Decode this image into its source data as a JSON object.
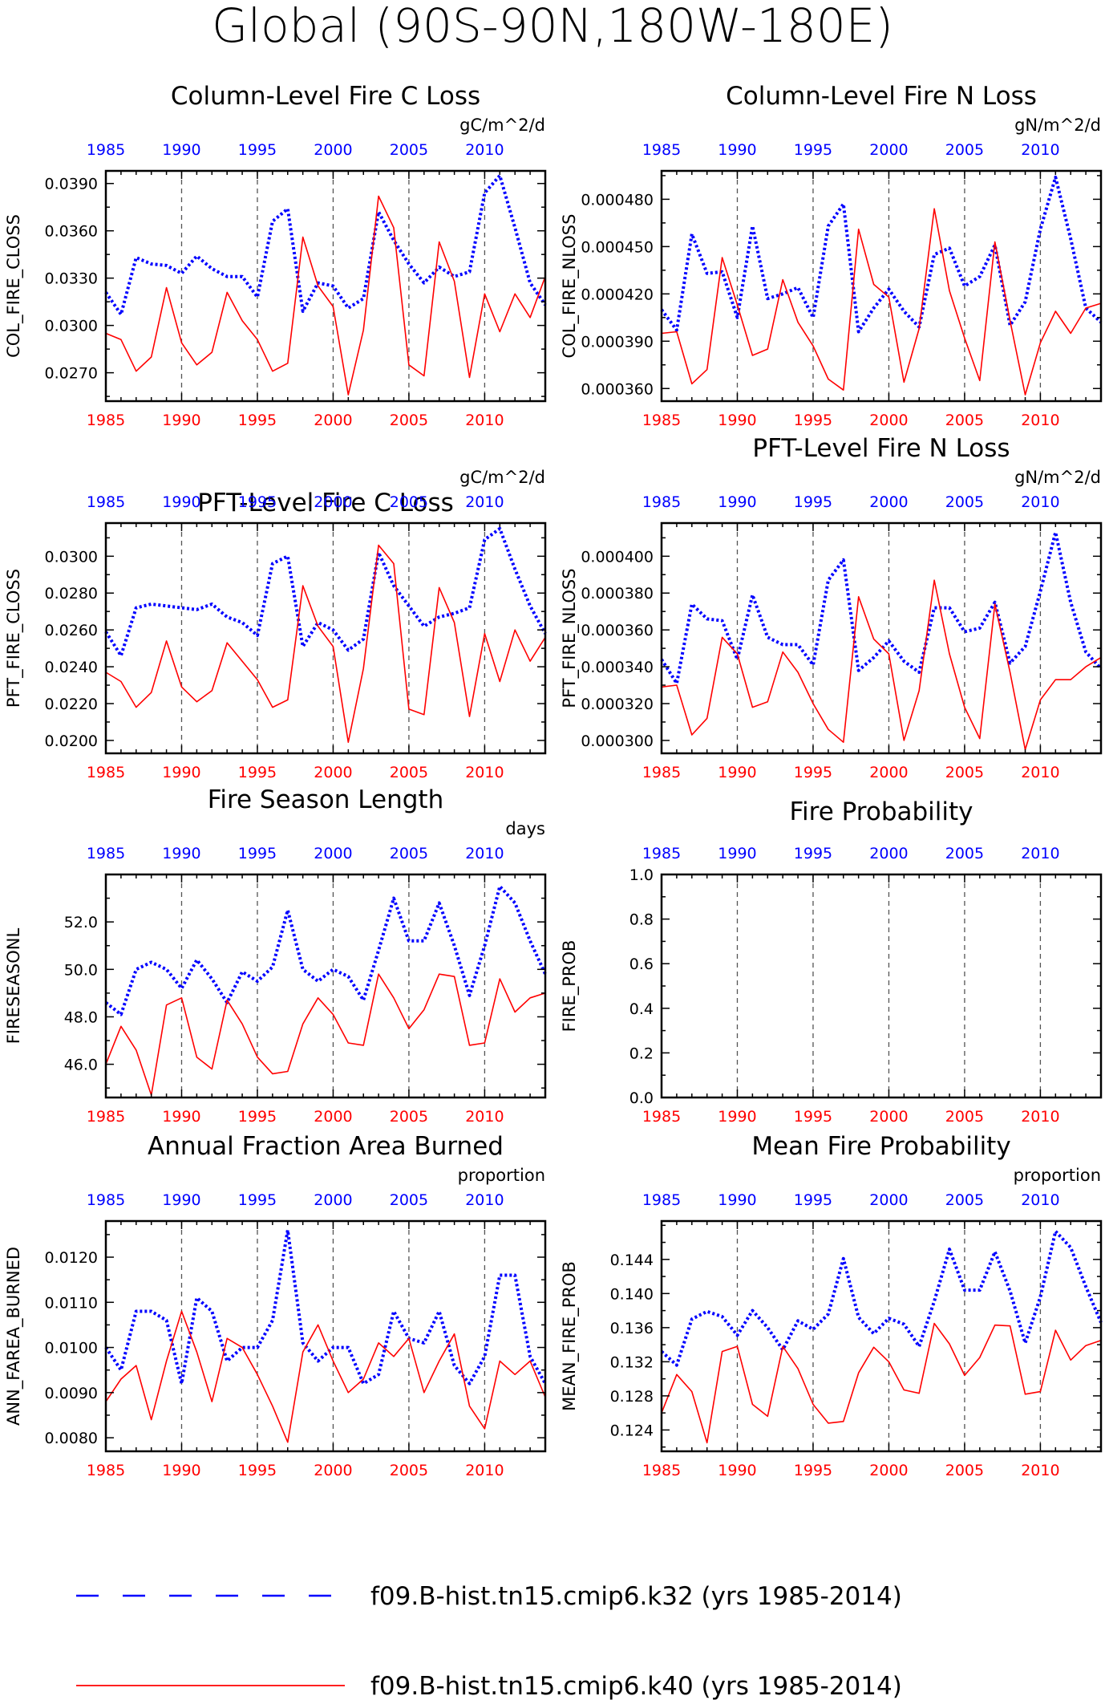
{
  "figure": {
    "title": "Global (90S-90N,180W-180E)",
    "colors": {
      "top_axis": "#0000ff",
      "bottom_axis": "#ff0000",
      "series_k32": "#0000ff",
      "series_k40": "#ff0000",
      "gridline": "#555555"
    }
  },
  "legend": [
    {
      "label": "f09.B-hist.tn15.cmip6.k32 (yrs 1985-2014)",
      "style": "dashed",
      "color": "#0000ff"
    },
    {
      "label": "f09.B-hist.tn15.cmip6.k40 (yrs 1985-2014)",
      "style": "solid",
      "color": "#ff0000"
    }
  ],
  "chart_data": [
    {
      "type": "line",
      "title": "Column-Level Fire C Loss",
      "ylabel": "COL_FIRE_CLOSS",
      "units": "gC/m^2/d",
      "xlim": [
        1985,
        2014
      ],
      "xticks": [
        "1985",
        "1990",
        "1995",
        "2000",
        "2005",
        "2010"
      ],
      "ylim": [
        0.0252,
        0.0398
      ],
      "yticks": [
        "0.0270",
        "0.0300",
        "0.0330",
        "0.0360",
        "0.0390"
      ],
      "x": [
        1985,
        1986,
        1987,
        1988,
        1989,
        1990,
        1991,
        1992,
        1993,
        1994,
        1995,
        1996,
        1997,
        1998,
        1999,
        2000,
        2001,
        2002,
        2003,
        2004,
        2005,
        2006,
        2007,
        2008,
        2009,
        2010,
        2011,
        2012,
        2013,
        2014
      ],
      "series": [
        {
          "name": "f09.B-hist.tn15.cmip6.k32 (yrs 1985-2014)",
          "values": [
            0.0321,
            0.0307,
            0.0343,
            0.0339,
            0.0338,
            0.0333,
            0.0344,
            0.0336,
            0.0331,
            0.0331,
            0.0318,
            0.0366,
            0.0374,
            0.0309,
            0.0327,
            0.0325,
            0.0311,
            0.0317,
            0.0372,
            0.0354,
            0.0339,
            0.0327,
            0.0337,
            0.0331,
            0.0334,
            0.0384,
            0.0395,
            0.0362,
            0.0327,
            0.0313
          ]
        },
        {
          "name": "f09.B-hist.tn15.cmip6.k40 (yrs 1985-2014)",
          "values": [
            0.0295,
            0.0291,
            0.0271,
            0.028,
            0.0324,
            0.0289,
            0.0275,
            0.0283,
            0.0321,
            0.0303,
            0.0291,
            0.0271,
            0.0276,
            0.0356,
            0.0325,
            0.0312,
            0.0256,
            0.0297,
            0.0382,
            0.0362,
            0.0275,
            0.0268,
            0.0353,
            0.0328,
            0.0267,
            0.032,
            0.0296,
            0.032,
            0.0305,
            0.0331
          ]
        }
      ]
    },
    {
      "type": "line",
      "title": "Column-Level Fire N Loss",
      "ylabel": "COL_FIRE_NLOSS",
      "units": "gN/m^2/d",
      "xlim": [
        1985,
        2014
      ],
      "xticks": [
        "1985",
        "1990",
        "1995",
        "2000",
        "2005",
        "2010"
      ],
      "ylim": [
        0.000352,
        0.000498
      ],
      "yticks": [
        "0.000360",
        "0.000390",
        "0.000420",
        "0.000450",
        "0.000480"
      ],
      "x": [
        1985,
        1986,
        1987,
        1988,
        1989,
        1990,
        1991,
        1992,
        1993,
        1994,
        1995,
        1996,
        1997,
        1998,
        1999,
        2000,
        2001,
        2002,
        2003,
        2004,
        2005,
        2006,
        2007,
        2008,
        2009,
        2010,
        2011,
        2012,
        2013,
        2014
      ],
      "series": [
        {
          "name": "f09.B-hist.tn15.cmip6.k32 (yrs 1985-2014)",
          "values": [
            0.00041,
            0.000397,
            0.000458,
            0.000433,
            0.000434,
            0.000405,
            0.000463,
            0.000417,
            0.00042,
            0.000424,
            0.000405,
            0.000463,
            0.000477,
            0.000396,
            0.000411,
            0.000423,
            0.000409,
            0.000399,
            0.000445,
            0.000449,
            0.000425,
            0.000431,
            0.000451,
            0.0004,
            0.000415,
            0.000461,
            0.000494,
            0.000455,
            0.000411,
            0.000402
          ]
        },
        {
          "name": "f09.B-hist.tn15.cmip6.k40 (yrs 1985-2014)",
          "values": [
            0.000395,
            0.000396,
            0.000363,
            0.000372,
            0.000443,
            0.000413,
            0.000381,
            0.000385,
            0.000429,
            0.000402,
            0.000387,
            0.000366,
            0.000359,
            0.000461,
            0.000426,
            0.000418,
            0.000364,
            0.000398,
            0.000474,
            0.000422,
            0.000392,
            0.000365,
            0.000453,
            0.000403,
            0.000356,
            0.000389,
            0.000409,
            0.000395,
            0.000411,
            0.000414
          ]
        }
      ]
    },
    {
      "type": "line",
      "title": "PFT-Level Fire C Loss",
      "ylabel": "PFT_FIRE_CLOSS",
      "units": "gC/m^2/d",
      "xlim": [
        1985,
        2014
      ],
      "xticks": [
        "1985",
        "1990",
        "1995",
        "2000",
        "2005",
        "2010"
      ],
      "ylim": [
        0.0193,
        0.0318
      ],
      "yticks": [
        "0.0200",
        "0.0220",
        "0.0240",
        "0.0260",
        "0.0280",
        "0.0300"
      ],
      "x": [
        1985,
        1986,
        1987,
        1988,
        1989,
        1990,
        1991,
        1992,
        1993,
        1994,
        1995,
        1996,
        1997,
        1998,
        1999,
        2000,
        2001,
        2002,
        2003,
        2004,
        2005,
        2006,
        2007,
        2008,
        2009,
        2010,
        2011,
        2012,
        2013,
        2014
      ],
      "series": [
        {
          "name": "f09.B-hist.tn15.cmip6.k32 (yrs 1985-2014)",
          "values": [
            0.0259,
            0.0246,
            0.0272,
            0.0274,
            0.0273,
            0.0272,
            0.0271,
            0.0274,
            0.0267,
            0.0264,
            0.0257,
            0.0296,
            0.03,
            0.0251,
            0.0264,
            0.026,
            0.0249,
            0.0255,
            0.0302,
            0.0284,
            0.0273,
            0.0262,
            0.0267,
            0.0269,
            0.0272,
            0.0309,
            0.0315,
            0.0293,
            0.0273,
            0.0258
          ]
        },
        {
          "name": "f09.B-hist.tn15.cmip6.k40 (yrs 1985-2014)",
          "values": [
            0.0237,
            0.0232,
            0.0218,
            0.0226,
            0.0254,
            0.0229,
            0.0221,
            0.0227,
            0.0253,
            0.0243,
            0.0233,
            0.0218,
            0.0222,
            0.0284,
            0.0262,
            0.0251,
            0.0199,
            0.0239,
            0.0306,
            0.0296,
            0.0217,
            0.0214,
            0.0283,
            0.0264,
            0.0213,
            0.0258,
            0.0232,
            0.026,
            0.0243,
            0.0256
          ]
        }
      ]
    },
    {
      "type": "line",
      "title": "PFT-Level Fire N Loss",
      "ylabel": "PFT_FIRE_NLOSS",
      "units": "gN/m^2/d",
      "xlim": [
        1985,
        2014
      ],
      "xticks": [
        "1985",
        "1990",
        "1995",
        "2000",
        "2005",
        "2010"
      ],
      "ylim": [
        0.000293,
        0.000418
      ],
      "yticks": [
        "0.000300",
        "0.000320",
        "0.000340",
        "0.000360",
        "0.000380",
        "0.000400"
      ],
      "x": [
        1985,
        1986,
        1987,
        1988,
        1989,
        1990,
        1991,
        1992,
        1993,
        1994,
        1995,
        1996,
        1997,
        1998,
        1999,
        2000,
        2001,
        2002,
        2003,
        2004,
        2005,
        2006,
        2007,
        2008,
        2009,
        2010,
        2011,
        2012,
        2013,
        2014
      ],
      "series": [
        {
          "name": "f09.B-hist.tn15.cmip6.k32 (yrs 1985-2014)",
          "values": [
            0.000344,
            0.000331,
            0.000374,
            0.000366,
            0.000365,
            0.000344,
            0.000379,
            0.000356,
            0.000352,
            0.000352,
            0.000341,
            0.000387,
            0.000398,
            0.000338,
            0.000345,
            0.000354,
            0.000343,
            0.000337,
            0.000372,
            0.000372,
            0.000359,
            0.000361,
            0.000375,
            0.000342,
            0.000351,
            0.000381,
            0.000413,
            0.000375,
            0.000348,
            0.000339
          ]
        },
        {
          "name": "f09.B-hist.tn15.cmip6.k40 (yrs 1985-2014)",
          "values": [
            0.000329,
            0.00033,
            0.000303,
            0.000312,
            0.000356,
            0.000347,
            0.000318,
            0.000321,
            0.000348,
            0.000337,
            0.00032,
            0.000306,
            0.000299,
            0.000378,
            0.000355,
            0.000347,
            0.0003,
            0.000327,
            0.000387,
            0.000347,
            0.000318,
            0.000301,
            0.000374,
            0.000337,
            0.000295,
            0.000322,
            0.000333,
            0.000333,
            0.00034,
            0.000345
          ]
        }
      ]
    },
    {
      "type": "line",
      "title": "Fire Season Length",
      "ylabel": "FIRESEASONL",
      "units": "days",
      "xlim": [
        1985,
        2014
      ],
      "xticks": [
        "1985",
        "1990",
        "1995",
        "2000",
        "2005",
        "2010"
      ],
      "ylim": [
        44.6,
        54.0
      ],
      "yticks": [
        "46.0",
        "48.0",
        "50.0",
        "52.0"
      ],
      "x": [
        1985,
        1986,
        1987,
        1988,
        1989,
        1990,
        1991,
        1992,
        1993,
        1994,
        1995,
        1996,
        1997,
        1998,
        1999,
        2000,
        2001,
        2002,
        2003,
        2004,
        2005,
        2006,
        2007,
        2008,
        2009,
        2010,
        2011,
        2012,
        2013,
        2014
      ],
      "series": [
        {
          "name": "f09.B-hist.tn15.cmip6.k32 (yrs 1985-2014)",
          "values": [
            48.6,
            48.1,
            50.0,
            50.3,
            50.0,
            49.2,
            50.4,
            49.6,
            48.6,
            49.9,
            49.5,
            50.1,
            52.5,
            50.0,
            49.5,
            50.0,
            49.7,
            48.7,
            50.8,
            53.0,
            51.2,
            51.2,
            52.8,
            51.0,
            48.9,
            51.0,
            53.5,
            52.8,
            51.2,
            49.8
          ]
        },
        {
          "name": "f09.B-hist.tn15.cmip6.k40 (yrs 1985-2014)",
          "values": [
            46.0,
            47.6,
            46.6,
            44.7,
            48.5,
            48.8,
            46.3,
            45.8,
            48.7,
            47.7,
            46.3,
            45.6,
            45.7,
            47.7,
            48.8,
            48.1,
            46.9,
            46.8,
            49.8,
            48.8,
            47.5,
            48.3,
            49.8,
            49.7,
            46.8,
            46.9,
            49.6,
            48.2,
            48.8,
            49.0
          ]
        }
      ]
    },
    {
      "type": "line",
      "title": "Fire Probability",
      "ylabel": "FIRE_PROB",
      "units": "",
      "xlim": [
        1985,
        2014
      ],
      "xticks": [
        "1985",
        "1990",
        "1995",
        "2000",
        "2005",
        "2010"
      ],
      "ylim": [
        0.0,
        1.0
      ],
      "yticks": [
        "0.0",
        "0.2",
        "0.4",
        "0.6",
        "0.8",
        "1.0"
      ],
      "x": [],
      "series": []
    },
    {
      "type": "line",
      "title": "Annual Fraction Area Burned",
      "ylabel": "ANN_FAREA_BURNED",
      "units": "proportion",
      "xlim": [
        1985,
        2014
      ],
      "xticks": [
        "1985",
        "1990",
        "1995",
        "2000",
        "2005",
        "2010"
      ],
      "ylim": [
        0.0077,
        0.0128
      ],
      "yticks": [
        "0.0080",
        "0.0090",
        "0.0100",
        "0.0110",
        "0.0120"
      ],
      "x": [
        1985,
        1986,
        1987,
        1988,
        1989,
        1990,
        1991,
        1992,
        1993,
        1994,
        1995,
        1996,
        1997,
        1998,
        1999,
        2000,
        2001,
        2002,
        2003,
        2004,
        2005,
        2006,
        2007,
        2008,
        2009,
        2010,
        2011,
        2012,
        2013,
        2014
      ],
      "series": [
        {
          "name": "f09.B-hist.tn15.cmip6.k32 (yrs 1985-2014)",
          "values": [
            0.01,
            0.0095,
            0.0108,
            0.0108,
            0.0106,
            0.0092,
            0.0111,
            0.0108,
            0.0097,
            0.01,
            0.01,
            0.0106,
            0.0126,
            0.0101,
            0.0097,
            0.01,
            0.01,
            0.0092,
            0.0094,
            0.0108,
            0.0102,
            0.0101,
            0.0108,
            0.0096,
            0.0092,
            0.0098,
            0.0116,
            0.0116,
            0.0098,
            0.0092
          ]
        },
        {
          "name": "f09.B-hist.tn15.cmip6.k40 (yrs 1985-2014)",
          "values": [
            0.0088,
            0.0093,
            0.0096,
            0.0084,
            0.0097,
            0.0108,
            0.0099,
            0.0088,
            0.0102,
            0.01,
            0.0094,
            0.0087,
            0.0079,
            0.0099,
            0.0105,
            0.0097,
            0.009,
            0.0093,
            0.0101,
            0.0098,
            0.0102,
            0.009,
            0.0097,
            0.0103,
            0.0087,
            0.0082,
            0.0097,
            0.0094,
            0.0097,
            0.0089
          ]
        }
      ]
    },
    {
      "type": "line",
      "title": "Mean Fire Probability",
      "ylabel": "MEAN_FIRE_PROB",
      "units": "proportion",
      "xlim": [
        1985,
        2014
      ],
      "xticks": [
        "1985",
        "1990",
        "1995",
        "2000",
        "2005",
        "2010"
      ],
      "ylim": [
        0.1215,
        0.1485
      ],
      "yticks": [
        "0.124",
        "0.128",
        "0.132",
        "0.136",
        "0.140",
        "0.144"
      ],
      "x": [
        1985,
        1986,
        1987,
        1988,
        1989,
        1990,
        1991,
        1992,
        1993,
        1994,
        1995,
        1996,
        1997,
        1998,
        1999,
        2000,
        2001,
        2002,
        2003,
        2004,
        2005,
        2006,
        2007,
        2008,
        2009,
        2010,
        2011,
        2012,
        2013,
        2014
      ],
      "series": [
        {
          "name": "f09.B-hist.tn15.cmip6.k32 (yrs 1985-2014)",
          "values": [
            0.1332,
            0.1316,
            0.137,
            0.1379,
            0.1373,
            0.1351,
            0.138,
            0.136,
            0.1334,
            0.1368,
            0.1358,
            0.1376,
            0.1441,
            0.1372,
            0.1353,
            0.1371,
            0.1364,
            0.1338,
            0.1391,
            0.1452,
            0.1404,
            0.1404,
            0.1449,
            0.1403,
            0.1342,
            0.1396,
            0.1473,
            0.1454,
            0.1408,
            0.1366
          ]
        },
        {
          "name": "f09.B-hist.tn15.cmip6.k40 (yrs 1985-2014)",
          "values": [
            0.126,
            0.1305,
            0.1285,
            0.1225,
            0.1332,
            0.1338,
            0.127,
            0.1256,
            0.1338,
            0.1312,
            0.127,
            0.1248,
            0.125,
            0.1307,
            0.1337,
            0.132,
            0.1287,
            0.1283,
            0.1365,
            0.1341,
            0.1304,
            0.1325,
            0.1363,
            0.1362,
            0.1282,
            0.1285,
            0.1357,
            0.1322,
            0.1339,
            0.1345
          ]
        }
      ]
    }
  ]
}
